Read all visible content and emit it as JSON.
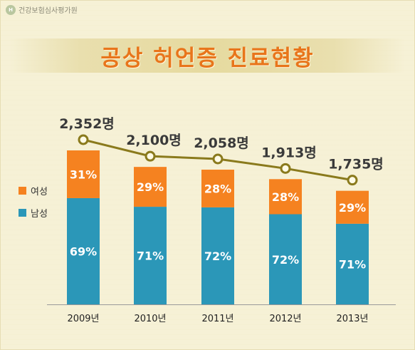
{
  "brand": "건강보험심사평가원",
  "chart_data": {
    "type": "bar",
    "title": "공상 허언증 진료현황",
    "categories": [
      "2009년",
      "2010년",
      "2011년",
      "2012년",
      "2013년"
    ],
    "totals": [
      2352,
      2100,
      2058,
      1913,
      1735
    ],
    "total_labels": [
      "2,352명",
      "2,100명",
      "2,058명",
      "1,913명",
      "1,735명"
    ],
    "series": [
      {
        "name": "남성",
        "color": "#2b97b8",
        "percent": [
          69,
          71,
          72,
          72,
          71
        ],
        "labels": [
          "69%",
          "71%",
          "72%",
          "72%",
          "71%"
        ]
      },
      {
        "name": "여성",
        "color": "#f58220",
        "percent": [
          31,
          29,
          28,
          28,
          29
        ],
        "labels": [
          "31%",
          "29%",
          "28%",
          "28%",
          "29%"
        ]
      }
    ],
    "stacked": true,
    "line_color": "#8a7a1c",
    "legend_position": "left"
  }
}
